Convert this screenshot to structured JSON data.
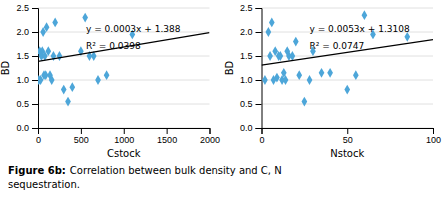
{
  "chart_data": [
    {
      "type": "scatter",
      "xlabel": "Cstock",
      "ylabel": "BD",
      "xlim": [
        0,
        2000
      ],
      "ylim": [
        0,
        2.5
      ],
      "xticks": [
        0,
        500,
        1000,
        1500,
        2000
      ],
      "yticks": [
        {
          "value": 0,
          "label": "0.0"
        },
        {
          "value": 0.5,
          "label": "0.5"
        },
        {
          "value": 1,
          "label": "1.0"
        },
        {
          "value": 1.5,
          "label": "1.5"
        },
        {
          "value": 2,
          "label": "2.0"
        },
        {
          "value": 2.5,
          "label": "2.5"
        }
      ],
      "grid": "y",
      "annotations": [
        "y = 0.0003x + 1.388",
        "R² = 0.0398"
      ],
      "series": [
        {
          "type": "scatter",
          "color": "#4da6d9",
          "marker": "diamond",
          "x": [
            10,
            20,
            30,
            40,
            50,
            60,
            70,
            80,
            90,
            100,
            120,
            140,
            160,
            180,
            200,
            250,
            300,
            350,
            400,
            500,
            550,
            600,
            650,
            700,
            800,
            1100
          ],
          "values": [
            1.0,
            1.6,
            1.0,
            1.5,
            1.6,
            2.0,
            1.1,
            1.5,
            1.1,
            2.1,
            1.6,
            1.1,
            1.0,
            1.5,
            2.2,
            1.5,
            0.8,
            0.55,
            0.85,
            1.6,
            2.3,
            1.5,
            1.5,
            1.0,
            1.1,
            1.95
          ]
        },
        {
          "type": "line",
          "color": "#000000",
          "line_style": "solid",
          "x": [
            0,
            2000
          ],
          "values": [
            1.388,
            1.9886
          ]
        }
      ]
    },
    {
      "type": "scatter",
      "xlabel": "Nstock",
      "ylabel": "BD",
      "xlim": [
        0,
        100
      ],
      "ylim": [
        0,
        2.5
      ],
      "xticks": [
        0,
        50,
        100
      ],
      "yticks": [
        {
          "value": 0,
          "label": "0.0"
        },
        {
          "value": 0.5,
          "label": "0.5"
        },
        {
          "value": 1,
          "label": "1.0"
        },
        {
          "value": 1.5,
          "label": "1.5"
        },
        {
          "value": 2,
          "label": "2.0"
        },
        {
          "value": 2.5,
          "label": "2.5"
        }
      ],
      "grid": "y",
      "annotations": [
        "y = 0.0053x + 1.3108",
        "R² = 0.0747"
      ],
      "series": [
        {
          "type": "scatter",
          "color": "#4da6d9",
          "marker": "diamond",
          "x": [
            2,
            4,
            5,
            6,
            7,
            8,
            9,
            10,
            11,
            12,
            13,
            14,
            15,
            16,
            18,
            20,
            22,
            25,
            28,
            30,
            35,
            40,
            50,
            55,
            60,
            65,
            85
          ],
          "values": [
            1.0,
            2.0,
            1.5,
            2.2,
            1.0,
            1.6,
            1.05,
            1.5,
            1.5,
            1.0,
            1.15,
            1.0,
            1.6,
            1.5,
            1.5,
            1.8,
            1.1,
            0.55,
            1.0,
            1.6,
            1.15,
            1.15,
            0.8,
            1.1,
            2.35,
            1.95,
            1.9
          ]
        },
        {
          "type": "line",
          "color": "#000000",
          "line_style": "solid",
          "x": [
            0,
            100
          ],
          "values": [
            1.3108,
            1.8408
          ]
        }
      ]
    }
  ],
  "caption": [
    "Figure 6b:",
    "Correlation between bulk density and C, N",
    "sequestration."
  ]
}
